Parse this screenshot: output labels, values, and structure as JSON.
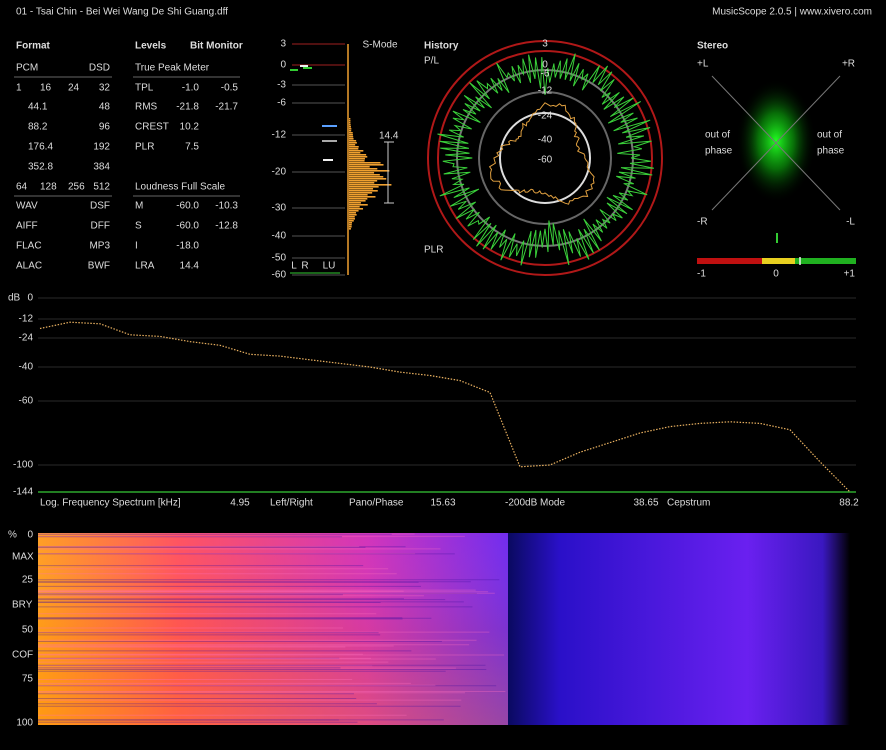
{
  "titlebar": {
    "file": "01 - Tsai Chin - Bei Wei Wang De Shi Guang.dff",
    "app": "MusicScope 2.0.5 | www.xivero.com"
  },
  "format": {
    "title": "Format",
    "rows": [
      [
        "PCM",
        "DSD"
      ],
      [
        "1",
        "16",
        "24",
        "32"
      ],
      [
        "44.1",
        "48"
      ],
      [
        "88.2",
        "96"
      ],
      [
        "176.4",
        "192"
      ],
      [
        "352.8",
        "384"
      ],
      [
        "64",
        "128",
        "256",
        "512"
      ],
      [
        "WAV",
        "DSF"
      ],
      [
        "AIFF",
        "DFF"
      ],
      [
        "FLAC",
        "MP3"
      ],
      [
        "ALAC",
        "BWF"
      ]
    ]
  },
  "levels": {
    "title": "Levels",
    "bit_monitor": "Bit Monitor",
    "true_peak_title": "True Peak Meter",
    "true_peak": [
      [
        "TPL",
        "-1.0",
        "-0.5"
      ],
      [
        "RMS",
        "-21.8",
        "-21.7"
      ],
      [
        "CREST",
        "10.2"
      ],
      [
        "PLR",
        "7.5"
      ]
    ],
    "loudness_title": "Loudness Full Scale",
    "loudness": [
      [
        "M",
        "-60.0",
        "-10.3"
      ],
      [
        "S",
        "-60.0",
        "-12.8"
      ],
      [
        "I",
        "-18.0"
      ],
      [
        "LRA",
        "14.4"
      ]
    ]
  },
  "smode": {
    "label": "S-Mode",
    "scale": [
      "3",
      "0",
      "-3",
      "-6",
      "-12",
      "-20",
      "-30",
      "-40",
      "-50",
      "-60"
    ],
    "lra": "14.4",
    "channels": [
      "L",
      "R",
      "LU"
    ]
  },
  "history": {
    "title": "History",
    "pl": "P/L",
    "plr": "PLR",
    "rings": [
      "3",
      "0",
      "-6",
      "-12",
      "-24",
      "-40",
      "-60"
    ]
  },
  "stereo": {
    "title": "Stereo",
    "corners": [
      "+L",
      "+R",
      "-R",
      "-L"
    ],
    "phase_left": [
      "out of",
      "phase"
    ],
    "phase_right": [
      "out of",
      "phase"
    ],
    "scale": [
      "-1",
      "0",
      "+1"
    ]
  },
  "spectrum": {
    "y_label": "dB",
    "yticks": [
      0,
      -12,
      -24,
      -40,
      -60,
      -100,
      -144
    ],
    "values": [
      -18,
      -14,
      -15,
      -22,
      -23,
      -26,
      -28,
      -33,
      -34,
      -36,
      -38,
      -40,
      -43,
      -45,
      -48,
      -55,
      -103,
      -100,
      -92,
      -86,
      -80,
      -76,
      -74,
      -73,
      -74,
      -78,
      -98,
      -144
    ],
    "title": "Log. Frequency Spectrum [kHz]",
    "bottom": [
      "4.95",
      "Left/Right",
      "Pano/Phase",
      "15.63",
      "-200dB Mode",
      "38.65",
      "Cepstrum",
      "88.2"
    ]
  },
  "spectrogram": {
    "y_label": "%",
    "labels": [
      "0",
      "MAX",
      "25",
      "BRY",
      "50",
      "COF",
      "75",
      "100"
    ]
  }
}
